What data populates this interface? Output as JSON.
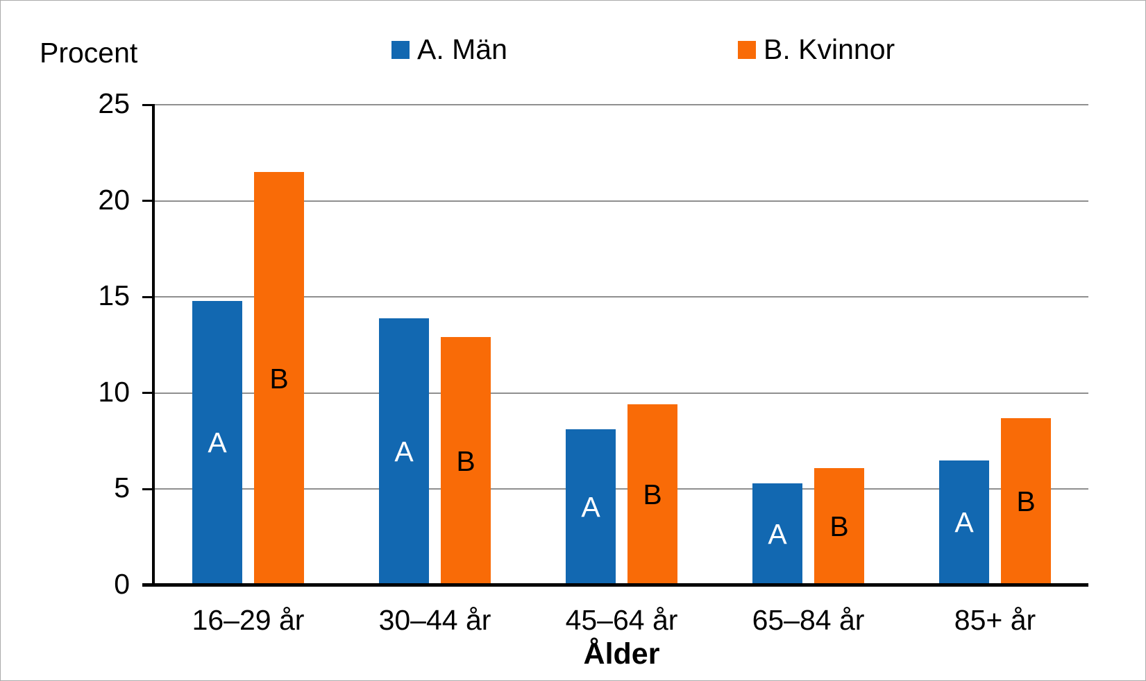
{
  "window": {
    "background": "#ffffff",
    "border_color": "#ababab",
    "text_color": "#000000"
  },
  "chart_data": {
    "type": "bar",
    "title": "",
    "ylabel": "Procent",
    "xlabel": "Ålder",
    "categories": [
      "16–29 år",
      "30–44 år",
      "45–64 år",
      "65–84 år",
      "85+ år"
    ],
    "series": [
      {
        "name": "A. Män",
        "bar_letter": "A",
        "color": "#1268b1",
        "letter_color": "#ffffff",
        "values": [
          14.8,
          13.9,
          8.1,
          5.3,
          6.5
        ]
      },
      {
        "name": "B. Kvinnor",
        "bar_letter": "B",
        "color": "#f96b07",
        "letter_color": "#000000",
        "values": [
          21.5,
          12.9,
          9.4,
          6.1,
          8.7
        ]
      }
    ],
    "ylim": [
      0,
      25
    ],
    "yticks": [
      0,
      5,
      10,
      15,
      20,
      25
    ],
    "grid": "horizontal-major",
    "gridline_color": "#8f8f8f",
    "axis_color": "#000000",
    "legend_position": "top"
  }
}
